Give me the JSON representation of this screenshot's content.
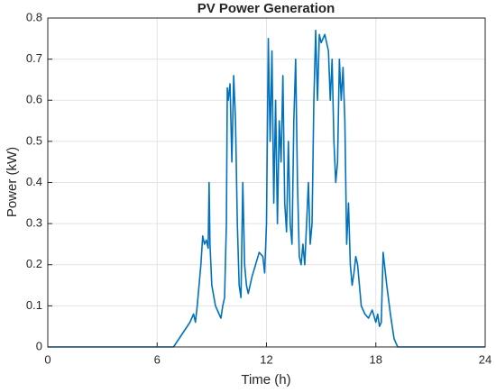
{
  "chart_data": {
    "type": "line",
    "title": "PV Power Generation",
    "xlabel": "Time (h)",
    "ylabel": "Power (kW)",
    "series": [
      {
        "name": "PV",
        "color": "#0072bd",
        "x": [
          0,
          6.9,
          7.2,
          7.5,
          7.8,
          8.0,
          8.1,
          8.2,
          8.3,
          8.4,
          8.5,
          8.6,
          8.7,
          8.8,
          8.85,
          8.9,
          9.0,
          9.2,
          9.4,
          9.5,
          9.6,
          9.7,
          9.8,
          9.85,
          9.9,
          10.0,
          10.1,
          10.2,
          10.3,
          10.4,
          10.5,
          10.6,
          10.7,
          10.8,
          10.9,
          11.0,
          11.2,
          11.4,
          11.6,
          11.8,
          11.9,
          12.0,
          12.1,
          12.2,
          12.3,
          12.4,
          12.5,
          12.6,
          12.7,
          12.8,
          12.9,
          13.0,
          13.1,
          13.2,
          13.3,
          13.4,
          13.5,
          13.6,
          13.7,
          13.8,
          13.9,
          14.0,
          14.1,
          14.2,
          14.3,
          14.4,
          14.5,
          14.6,
          14.7,
          14.8,
          14.9,
          15.0,
          15.2,
          15.4,
          15.5,
          15.6,
          15.7,
          15.8,
          15.9,
          16.0,
          16.1,
          16.2,
          16.3,
          16.4,
          16.5,
          16.6,
          16.7,
          16.8,
          16.9,
          17.0,
          17.1,
          17.2,
          17.4,
          17.6,
          17.8,
          18.0,
          18.1,
          18.2,
          18.3,
          18.4,
          18.6,
          18.8,
          19.0,
          19.2,
          24
        ],
        "values": [
          0,
          0,
          0.02,
          0.04,
          0.06,
          0.08,
          0.06,
          0.1,
          0.15,
          0.2,
          0.27,
          0.25,
          0.26,
          0.24,
          0.4,
          0.25,
          0.15,
          0.1,
          0.08,
          0.07,
          0.1,
          0.12,
          0.3,
          0.63,
          0.6,
          0.64,
          0.45,
          0.66,
          0.55,
          0.3,
          0.15,
          0.12,
          0.4,
          0.2,
          0.15,
          0.13,
          0.17,
          0.2,
          0.23,
          0.22,
          0.18,
          0.3,
          0.75,
          0.5,
          0.72,
          0.35,
          0.6,
          0.3,
          0.55,
          0.45,
          0.66,
          0.35,
          0.28,
          0.5,
          0.3,
          0.25,
          0.55,
          0.7,
          0.4,
          0.22,
          0.2,
          0.25,
          0.2,
          0.3,
          0.4,
          0.25,
          0.3,
          0.6,
          0.77,
          0.6,
          0.76,
          0.74,
          0.76,
          0.72,
          0.6,
          0.7,
          0.5,
          0.4,
          0.45,
          0.7,
          0.6,
          0.68,
          0.55,
          0.25,
          0.35,
          0.2,
          0.15,
          0.18,
          0.22,
          0.2,
          0.15,
          0.1,
          0.08,
          0.07,
          0.09,
          0.06,
          0.08,
          0.05,
          0.06,
          0.23,
          0.15,
          0.08,
          0.02,
          0,
          0
        ]
      }
    ],
    "xlim": [
      0,
      24
    ],
    "xticks": [
      0,
      6,
      12,
      18,
      24
    ],
    "ylim": [
      0,
      0.8
    ],
    "yticks": [
      0,
      0.1,
      0.2,
      0.3,
      0.4,
      0.5,
      0.6,
      0.7,
      0.8
    ],
    "grid": true
  }
}
